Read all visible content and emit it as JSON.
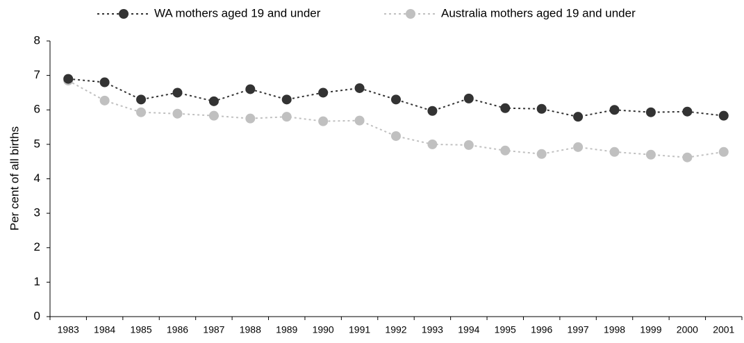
{
  "chart_data": {
    "type": "line",
    "y_label": "Per cent of all births",
    "categories": [
      "1983",
      "1984",
      "1985",
      "1986",
      "1987",
      "1988",
      "1989",
      "1990",
      "1991",
      "1992",
      "1993",
      "1994",
      "1995",
      "1996",
      "1997",
      "1998",
      "1999",
      "2000",
      "2001"
    ],
    "series": [
      {
        "name": "WA mothers aged 19 and under",
        "color": "#333333",
        "values": [
          6.9,
          6.8,
          6.3,
          6.5,
          6.25,
          6.6,
          6.3,
          6.5,
          6.63,
          6.3,
          5.97,
          6.33,
          6.05,
          6.03,
          5.8,
          6.0,
          5.93,
          5.95,
          5.83
        ]
      },
      {
        "name": "Australia mothers aged 19 and under",
        "color": "#c0c0c0",
        "values": [
          6.85,
          6.27,
          5.93,
          5.89,
          5.83,
          5.75,
          5.8,
          5.67,
          5.69,
          5.24,
          5.0,
          4.98,
          4.82,
          4.72,
          4.92,
          4.78,
          4.7,
          4.62,
          4.78
        ]
      }
    ],
    "ylim": [
      0,
      8
    ],
    "yticks": [
      0,
      1,
      2,
      3,
      4,
      5,
      6,
      7,
      8
    ],
    "legend": "top",
    "grid": false
  }
}
